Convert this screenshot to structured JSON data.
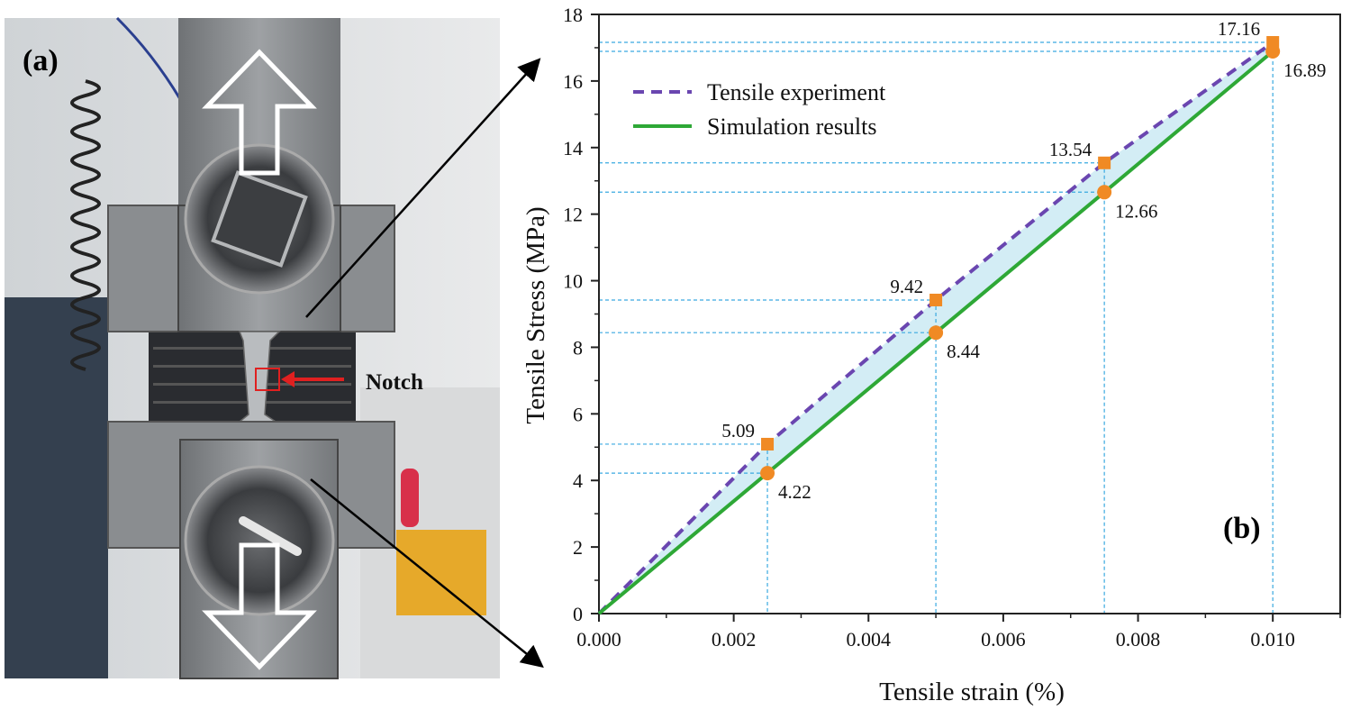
{
  "panel_a": {
    "label": "(a)",
    "notch_label": "Notch"
  },
  "colors": {
    "experiment": "#6a46b0",
    "simulation": "#2ea836",
    "marker": "#f08a24",
    "guide": "#3aa9e0",
    "fill": "#cbeaf3",
    "notch_box": "#e02020"
  },
  "chart_data": {
    "type": "line",
    "panel_label": "(b)",
    "xlabel": "Tensile strain (%)",
    "ylabel": "Tensile Stress (MPa)",
    "xlim": [
      0,
      0.011
    ],
    "ylim": [
      0,
      18
    ],
    "xticks": [
      "0.000",
      "0.002",
      "0.004",
      "0.006",
      "0.008",
      "0.010"
    ],
    "yticks": [
      "0",
      "2",
      "4",
      "6",
      "8",
      "10",
      "12",
      "14",
      "16",
      "18"
    ],
    "legend_position": "top-left",
    "series": [
      {
        "name": "Tensile experiment",
        "style": "dashed",
        "marker": "square",
        "x": [
          0,
          0.0025,
          0.005,
          0.0075,
          0.01
        ],
        "y": [
          0,
          5.09,
          9.42,
          13.54,
          17.16
        ],
        "labels": [
          "",
          "5.09",
          "9.42",
          "13.54",
          "17.16"
        ]
      },
      {
        "name": "Simulation results",
        "style": "solid",
        "marker": "circle",
        "x": [
          0,
          0.0025,
          0.005,
          0.0075,
          0.01
        ],
        "y": [
          0,
          4.22,
          8.44,
          12.66,
          16.89
        ],
        "labels": [
          "",
          "4.22",
          "8.44",
          "12.66",
          "16.89"
        ]
      }
    ]
  }
}
